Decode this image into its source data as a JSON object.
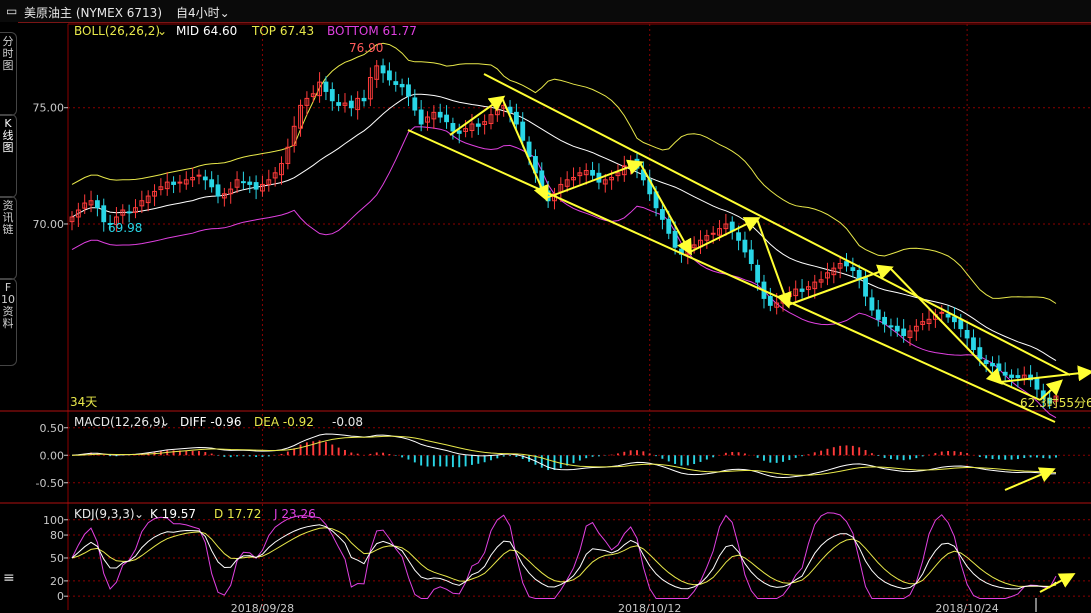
{
  "topbar": {
    "instrument": "美原油主 (NYMEX 6713)",
    "period": "自4小时"
  },
  "sidebar": {
    "tabs": [
      "分时图",
      "K线图",
      "资讯链",
      "F10资料"
    ]
  },
  "colors": {
    "up": "#ff3b3b",
    "down": "#29d6e6",
    "mid": "#ffffff",
    "top": "#e8e84a",
    "bottom": "#e040e0",
    "arrow": "#ffff33",
    "grid": "#8b0000"
  },
  "main_panel": {
    "boll_label": "BOLL(26,26,2)",
    "mid": "MID 64.60",
    "top": "TOP 67.43",
    "bottom": "BOTTOM 61.77",
    "high_label": "76.90",
    "low_label": "69.98",
    "days_label": "34天",
    "countdown": "62.3时55分6"
  },
  "macd_panel": {
    "label": "MACD(12,26,9)",
    "diff": "DIFF -0.96",
    "dea": "DEA -0.92",
    "macd": "-0.08"
  },
  "kdj_panel": {
    "label": "KDJ(9,3,3)",
    "k": "K 19.57",
    "d": "D 17.72",
    "j": "J 23.26"
  },
  "chart_data": {
    "type": "candlestick",
    "price_axis": {
      "ticks": [
        75.0,
        70.0
      ],
      "labels": [
        "75.00",
        "70.00"
      ],
      "range": [
        62.0,
        78.6
      ]
    },
    "macd_axis": {
      "ticks": [
        0.5,
        0.0,
        -0.5
      ],
      "labels": [
        "0.50",
        "0.00",
        "-0.50"
      ],
      "range": [
        -0.85,
        0.75
      ]
    },
    "kdj_axis": {
      "ticks": [
        100,
        80,
        50,
        20,
        0
      ],
      "labels": [
        "100",
        "80",
        "50",
        "20",
        "0"
      ],
      "range": [
        -5,
        118
      ]
    },
    "x_ticks": [
      {
        "index": 30,
        "label": "2018/09/28"
      },
      {
        "index": 91,
        "label": "2018/10/12"
      },
      {
        "index": 141,
        "label": "2018/10/24"
      }
    ],
    "closes": [
      70.3,
      70.6,
      70.9,
      71.0,
      70.7,
      70.1,
      69.98,
      70.3,
      70.6,
      70.5,
      70.7,
      71.0,
      71.2,
      71.4,
      71.6,
      71.8,
      71.7,
      71.8,
      71.9,
      72.0,
      72.1,
      71.9,
      71.6,
      71.2,
      71.3,
      71.5,
      71.9,
      71.8,
      71.7,
      71.5,
      71.7,
      71.9,
      72.2,
      72.6,
      73.3,
      74.2,
      75.1,
      75.4,
      75.6,
      76.1,
      75.7,
      75.3,
      75.1,
      75.2,
      75.0,
      75.4,
      75.3,
      76.3,
      76.8,
      76.5,
      76.2,
      76.0,
      75.9,
      75.5,
      74.9,
      74.3,
      74.6,
      74.8,
      74.6,
      74.4,
      74.0,
      73.9,
      74.1,
      74.3,
      74.2,
      74.4,
      74.7,
      74.9,
      75.1,
      74.8,
      74.3,
      73.6,
      72.9,
      72.2,
      71.5,
      71.0,
      71.3,
      71.7,
      71.9,
      72.0,
      72.2,
      72.3,
      72.1,
      71.8,
      71.9,
      72.0,
      72.2,
      72.5,
      72.7,
      72.4,
      71.9,
      71.3,
      70.7,
      70.2,
      69.6,
      69.0,
      68.7,
      68.9,
      69.1,
      69.3,
      69.5,
      69.6,
      69.8,
      70.0,
      69.7,
      69.3,
      68.8,
      68.3,
      67.5,
      66.8,
      66.5,
      66.6,
      66.8,
      67.0,
      67.2,
      67.1,
      67.3,
      67.5,
      67.6,
      67.9,
      68.1,
      68.3,
      68.2,
      68.0,
      67.6,
      66.9,
      66.3,
      65.9,
      65.7,
      65.6,
      65.4,
      65.2,
      65.4,
      65.6,
      65.8,
      65.9,
      66.1,
      66.2,
      66.0,
      65.8,
      65.5,
      65.1,
      64.6,
      64.2,
      64.0,
      63.9,
      63.7,
      63.5,
      63.4,
      63.4,
      63.5,
      63.3,
      62.9,
      62.5,
      62.3,
      62.6
    ],
    "boll_mid_last": 64.6,
    "boll_top_last": 67.43,
    "boll_bottom_last": 61.77,
    "macd_last": {
      "diff": -0.96,
      "dea": -0.92,
      "macd": -0.08
    },
    "kdj_last": {
      "k": 19.57,
      "d": 17.72,
      "j": 23.26
    }
  }
}
